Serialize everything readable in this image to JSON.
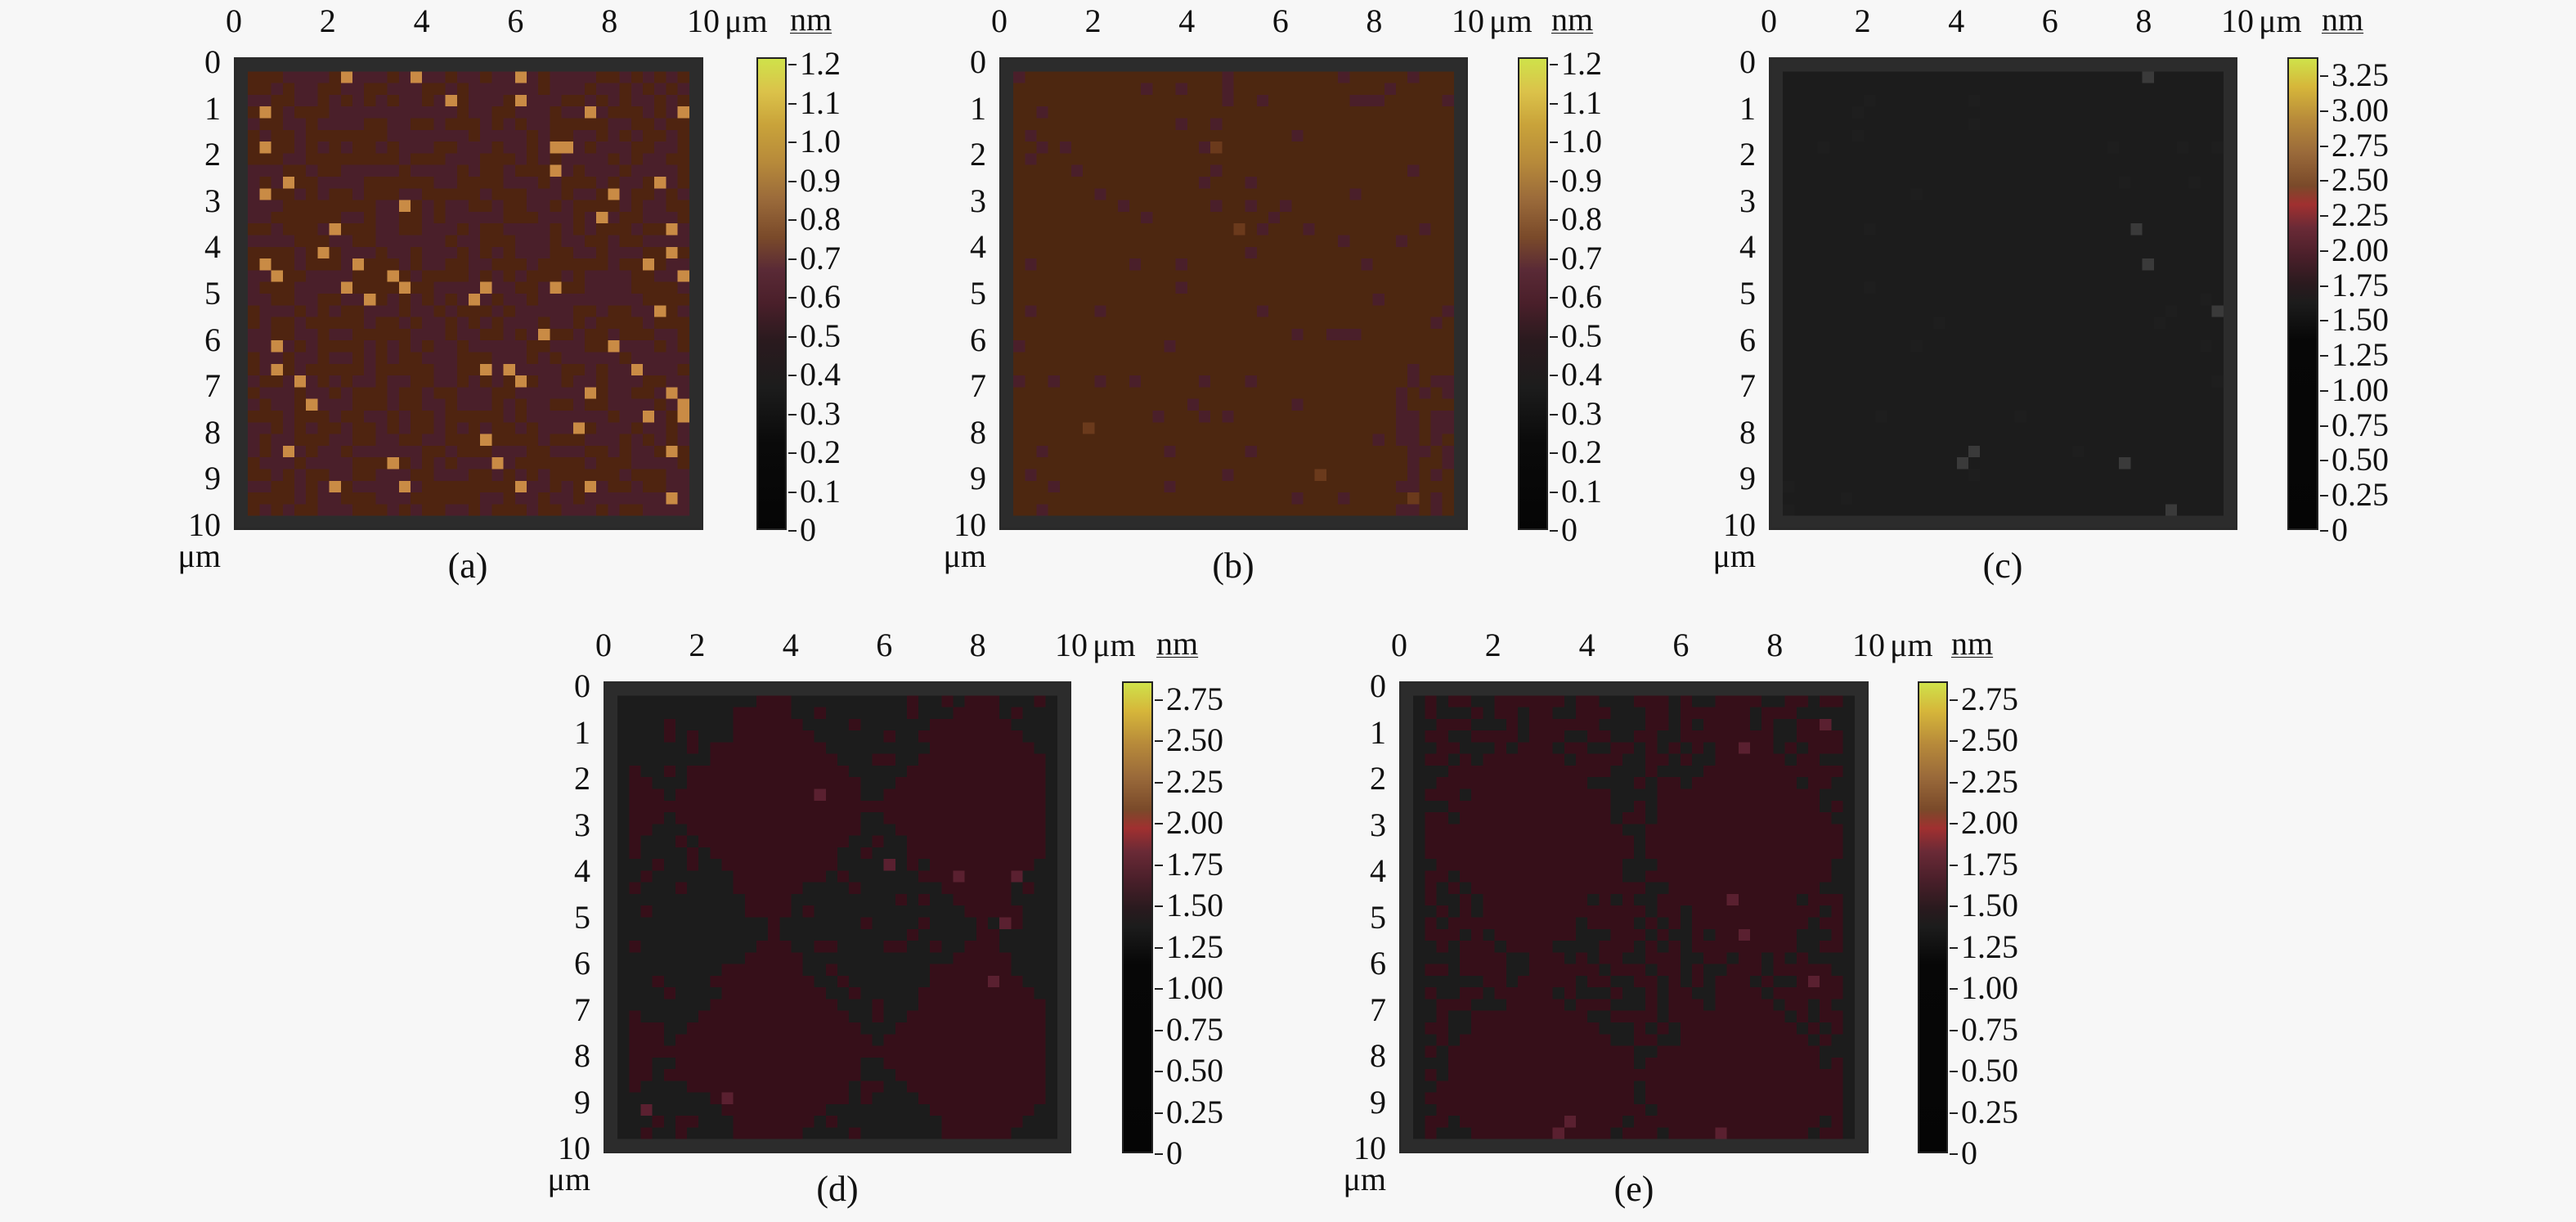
{
  "figure": {
    "background": "#f7f7f7",
    "panels": [
      {
        "id": "a",
        "caption": "(a)",
        "nm_label": "nm",
        "x_unit": "μm",
        "y_unit": "μm",
        "x_ticks": [
          "0",
          "2",
          "4",
          "6",
          "8",
          "10"
        ],
        "y_ticks": [
          "0",
          "1",
          "2",
          "3",
          "4",
          "5",
          "6",
          "7",
          "8",
          "9",
          "10"
        ],
        "cbar_ticks": [
          "1.2",
          "1.1",
          "1.0",
          "0.9",
          "0.8",
          "0.7",
          "0.6",
          "0.5",
          "0.4",
          "0.3",
          "0.2",
          "0.1",
          "0"
        ],
        "base_colors": [
          "#4f2410",
          "#4a1f2a"
        ],
        "speckle": "#c98b45"
      },
      {
        "id": "b",
        "caption": "(b)",
        "nm_label": "nm",
        "x_unit": "μm",
        "y_unit": "μm",
        "x_ticks": [
          "0",
          "2",
          "4",
          "6",
          "8",
          "10"
        ],
        "y_ticks": [
          "0",
          "1",
          "2",
          "3",
          "4",
          "5",
          "6",
          "7",
          "8",
          "9",
          "10"
        ],
        "cbar_ticks": [
          "1.2",
          "1.1",
          "1.0",
          "0.9",
          "0.8",
          "0.7",
          "0.6",
          "0.5",
          "0.4",
          "0.3",
          "0.2",
          "0.1",
          "0"
        ],
        "base_colors": [
          "#4d2710",
          "#4a1f2a"
        ],
        "speckle": "#6b3a1c"
      },
      {
        "id": "c",
        "caption": "(c)",
        "nm_label": "nm",
        "x_unit": "μm",
        "y_unit": "μm",
        "x_ticks": [
          "0",
          "2",
          "4",
          "6",
          "8",
          "10"
        ],
        "y_ticks": [
          "0",
          "1",
          "2",
          "3",
          "4",
          "5",
          "6",
          "7",
          "8",
          "9",
          "10"
        ],
        "cbar_ticks": [
          "3.25",
          "3.00",
          "2.75",
          "2.50",
          "2.25",
          "2.00",
          "1.75",
          "1.50",
          "1.25",
          "1.00",
          "0.75",
          "0.50",
          "0.25",
          "0"
        ],
        "base_colors": [
          "#1c1c1c",
          "#1e1e1e"
        ],
        "speckle": "#3a3a3a"
      },
      {
        "id": "d",
        "caption": "(d)",
        "nm_label": "nm",
        "x_unit": "μm",
        "y_unit": "μm",
        "x_ticks": [
          "0",
          "2",
          "4",
          "6",
          "8",
          "10"
        ],
        "y_ticks": [
          "0",
          "1",
          "2",
          "3",
          "4",
          "5",
          "6",
          "7",
          "8",
          "9",
          "10"
        ],
        "cbar_ticks": [
          "2.75",
          "2.50",
          "2.25",
          "2.00",
          "1.75",
          "1.50",
          "1.25",
          "1.00",
          "0.75",
          "0.50",
          "0.25",
          "0"
        ],
        "base_colors": [
          "#1c1c1c",
          "#360f19"
        ],
        "speckle": "#5a2030"
      },
      {
        "id": "e",
        "caption": "(e)",
        "nm_label": "nm",
        "x_unit": "μm",
        "y_unit": "μm",
        "x_ticks": [
          "0",
          "2",
          "4",
          "6",
          "8",
          "10"
        ],
        "y_ticks": [
          "0",
          "1",
          "2",
          "3",
          "4",
          "5",
          "6",
          "7",
          "8",
          "9",
          "10"
        ],
        "cbar_ticks": [
          "2.75",
          "2.50",
          "2.25",
          "2.00",
          "1.75",
          "1.50",
          "1.25",
          "1.00",
          "0.75",
          "0.50",
          "0.25",
          "0"
        ],
        "base_colors": [
          "#1c1c1c",
          "#360f19"
        ],
        "speckle": "#5a2030"
      }
    ]
  },
  "chart_data": [
    {
      "type": "heatmap",
      "title": "(a)",
      "xlabel": "μm",
      "ylabel": "μm",
      "colorbar_label": "nm",
      "x_range": [
        0,
        10
      ],
      "y_range": [
        0,
        10
      ],
      "color_range": [
        0,
        1.2
      ],
      "x_ticks": [
        0,
        2,
        4,
        6,
        8,
        10
      ],
      "y_ticks": [
        0,
        1,
        2,
        3,
        4,
        5,
        6,
        7,
        8,
        9,
        10
      ],
      "colorbar_ticks": [
        0,
        0.1,
        0.2,
        0.3,
        0.4,
        0.5,
        0.6,
        0.7,
        0.8,
        0.9,
        1.0,
        1.1,
        1.2
      ],
      "description": "AFM height map; mottled brown/maroon surface (~0.4–0.5 nm) with scattered bright specks"
    },
    {
      "type": "heatmap",
      "title": "(b)",
      "xlabel": "μm",
      "ylabel": "μm",
      "colorbar_label": "nm",
      "x_range": [
        0,
        10
      ],
      "y_range": [
        0,
        10
      ],
      "color_range": [
        0,
        1.2
      ],
      "x_ticks": [
        0,
        2,
        4,
        6,
        8,
        10
      ],
      "y_ticks": [
        0,
        1,
        2,
        3,
        4,
        5,
        6,
        7,
        8,
        9,
        10
      ],
      "colorbar_ticks": [
        0,
        0.1,
        0.2,
        0.3,
        0.4,
        0.5,
        0.6,
        0.7,
        0.8,
        0.9,
        1.0,
        1.1,
        1.2
      ],
      "description": "AFM height map; nearly uniform brown (~0.6–0.7 nm) with a few maroon patches at lower right"
    },
    {
      "type": "heatmap",
      "title": "(c)",
      "xlabel": "μm",
      "ylabel": "μm",
      "colorbar_label": "nm",
      "x_range": [
        0,
        10
      ],
      "y_range": [
        0,
        10
      ],
      "color_range": [
        0,
        3.25
      ],
      "x_ticks": [
        0,
        2,
        4,
        6,
        8,
        10
      ],
      "y_ticks": [
        0,
        1,
        2,
        3,
        4,
        5,
        6,
        7,
        8,
        9,
        10
      ],
      "colorbar_ticks": [
        0,
        0.25,
        0.5,
        0.75,
        1.0,
        1.25,
        1.5,
        1.75,
        2.0,
        2.25,
        2.5,
        2.75,
        3.0,
        3.25
      ],
      "description": "AFM height map; nearly uniform dark (~1.25–1.5 nm)"
    },
    {
      "type": "heatmap",
      "title": "(d)",
      "xlabel": "μm",
      "ylabel": "μm",
      "colorbar_label": "nm",
      "x_range": [
        0,
        10
      ],
      "y_range": [
        0,
        10
      ],
      "color_range": [
        0,
        2.75
      ],
      "x_ticks": [
        0,
        2,
        4,
        6,
        8,
        10
      ],
      "y_ticks": [
        0,
        1,
        2,
        3,
        4,
        5,
        6,
        7,
        8,
        9,
        10
      ],
      "colorbar_ticks": [
        0,
        0.25,
        0.5,
        0.75,
        1.0,
        1.25,
        1.5,
        1.75,
        2.0,
        2.25,
        2.5,
        2.75
      ],
      "description": "AFM height map; blocky dark and dark-maroon regions (~1.25–1.5 nm)"
    },
    {
      "type": "heatmap",
      "title": "(e)",
      "xlabel": "μm",
      "ylabel": "μm",
      "colorbar_label": "nm",
      "x_range": [
        0,
        10
      ],
      "y_range": [
        0,
        10
      ],
      "color_range": [
        0,
        2.75
      ],
      "x_ticks": [
        0,
        2,
        4,
        6,
        8,
        10
      ],
      "y_ticks": [
        0,
        1,
        2,
        3,
        4,
        5,
        6,
        7,
        8,
        9,
        10
      ],
      "colorbar_ticks": [
        0,
        0.25,
        0.5,
        0.75,
        1.0,
        1.25,
        1.5,
        1.75,
        2.0,
        2.25,
        2.5,
        2.75
      ],
      "description": "AFM height map; large dark-maroon region with dark border and central dark patches"
    }
  ]
}
